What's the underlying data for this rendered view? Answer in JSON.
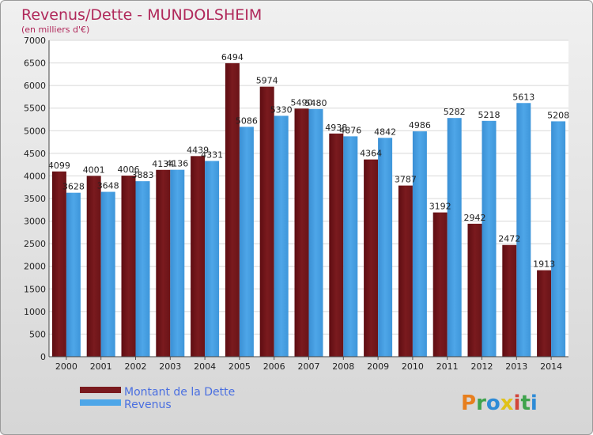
{
  "chart_data": {
    "type": "bar",
    "title": "Revenus/Dette - MUNDOLSHEIM",
    "subtitle": "(en milliers d'€)",
    "xlabel": "",
    "ylabel": "",
    "categories": [
      "2000",
      "2001",
      "2002",
      "2003",
      "2004",
      "2005",
      "2006",
      "2007",
      "2008",
      "2009",
      "2010",
      "2011",
      "2012",
      "2013",
      "2014"
    ],
    "series": [
      {
        "name": "Montant de la Dette",
        "color": "#7a1a1e",
        "values": [
          4099,
          4001,
          4006,
          4134,
          4439,
          6494,
          5974,
          5490,
          4938,
          4364,
          3787,
          3192,
          2942,
          2472,
          1913
        ]
      },
      {
        "name": "Revenus",
        "color": "#4ea6e8",
        "values": [
          3628,
          3648,
          3883,
          4136,
          4331,
          5086,
          5330,
          5480,
          4876,
          4842,
          4986,
          5282,
          5218,
          5613,
          5208
        ]
      }
    ],
    "ylim": [
      0,
      7000
    ],
    "yticks": [
      0,
      500,
      1000,
      1500,
      2000,
      2500,
      3000,
      3500,
      4000,
      4500,
      5000,
      5500,
      6000,
      6500,
      7000
    ],
    "grid": true,
    "legend_position": "bottom-left"
  },
  "logo": {
    "text": "Proxiti"
  }
}
